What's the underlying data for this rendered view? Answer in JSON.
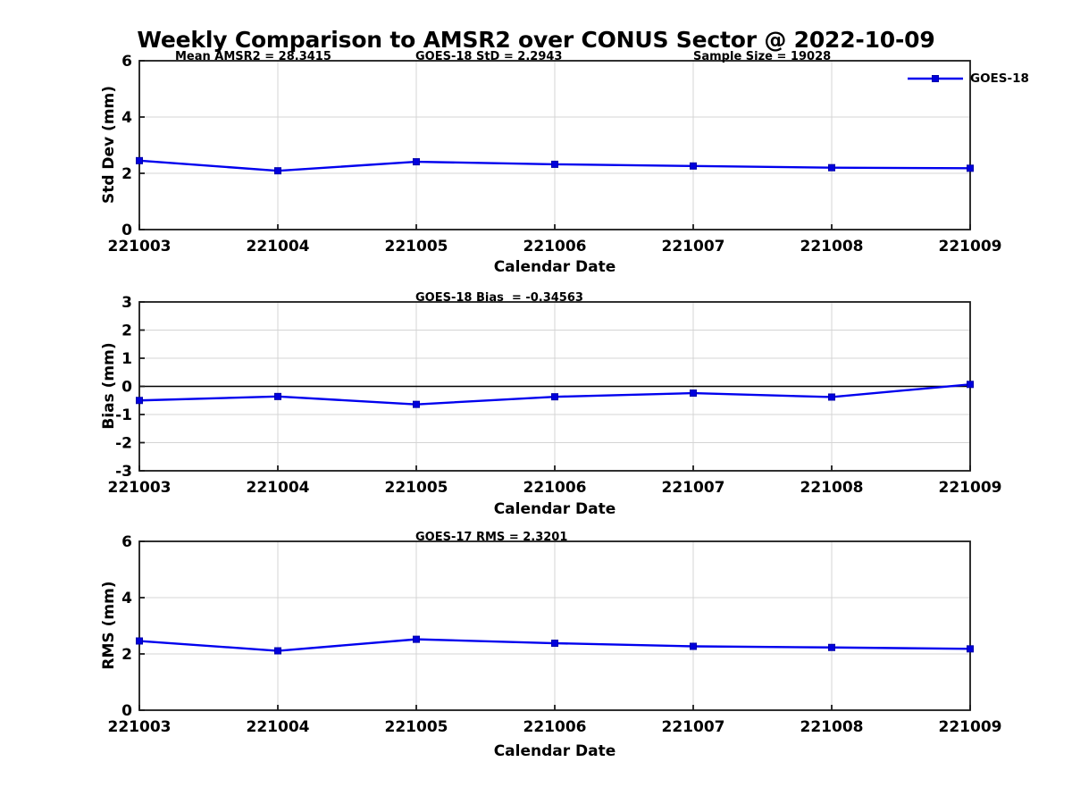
{
  "title": "Weekly Comparison to AMSR2 over CONUS Sector @ 2022-10-09",
  "colors": {
    "line": "#0000ee",
    "marker_fill": "#0000dd",
    "marker_edge": "#0000aa",
    "grid": "#d4d4d4",
    "axis": "#1a1a1a",
    "zero_line": "#000000",
    "text": "#000000"
  },
  "chart_data": [
    {
      "id": "stddev",
      "type": "line",
      "ylabel": "Std Dev (mm)",
      "xlabel": "Calendar Date",
      "annotations": [
        "Mean AMSR2 = 28.3415",
        "GOES-18 StD = 2.2943",
        "Sample Size = 19028"
      ],
      "categories": [
        "221003",
        "221004",
        "221005",
        "221006",
        "221007",
        "221008",
        "221009"
      ],
      "series": [
        {
          "name": "GOES-18",
          "values": [
            2.45,
            2.09,
            2.41,
            2.32,
            2.26,
            2.2,
            2.18
          ]
        }
      ],
      "ylim": [
        0,
        6
      ],
      "yticks": [
        0,
        2,
        4,
        6
      ],
      "grid": true,
      "zero_line": false,
      "legend": {
        "label": "GOES-18",
        "position": "top-right"
      }
    },
    {
      "id": "bias",
      "type": "line",
      "ylabel": "Bias (mm)",
      "xlabel": "Calendar Date",
      "annotations": [
        "GOES-18 Bias  = -0.34563"
      ],
      "categories": [
        "221003",
        "221004",
        "221005",
        "221006",
        "221007",
        "221008",
        "221009"
      ],
      "series": [
        {
          "name": "GOES-18",
          "values": [
            -0.5,
            -0.36,
            -0.64,
            -0.37,
            -0.24,
            -0.38,
            0.07
          ]
        }
      ],
      "ylim": [
        -3,
        3
      ],
      "yticks": [
        -3,
        -2,
        -1,
        0,
        1,
        2,
        3
      ],
      "grid": true,
      "zero_line": true,
      "legend": null
    },
    {
      "id": "rms",
      "type": "line",
      "ylabel": "RMS (mm)",
      "xlabel": "Calendar Date",
      "annotations": [
        "GOES-17 RMS = 2.3201"
      ],
      "categories": [
        "221003",
        "221004",
        "221005",
        "221006",
        "221007",
        "221008",
        "221009"
      ],
      "series": [
        {
          "name": "GOES-18",
          "values": [
            2.46,
            2.11,
            2.52,
            2.38,
            2.27,
            2.23,
            2.18
          ]
        }
      ],
      "ylim": [
        0,
        6
      ],
      "yticks": [
        0,
        2,
        4,
        6
      ],
      "grid": true,
      "zero_line": false,
      "legend": null
    }
  ]
}
